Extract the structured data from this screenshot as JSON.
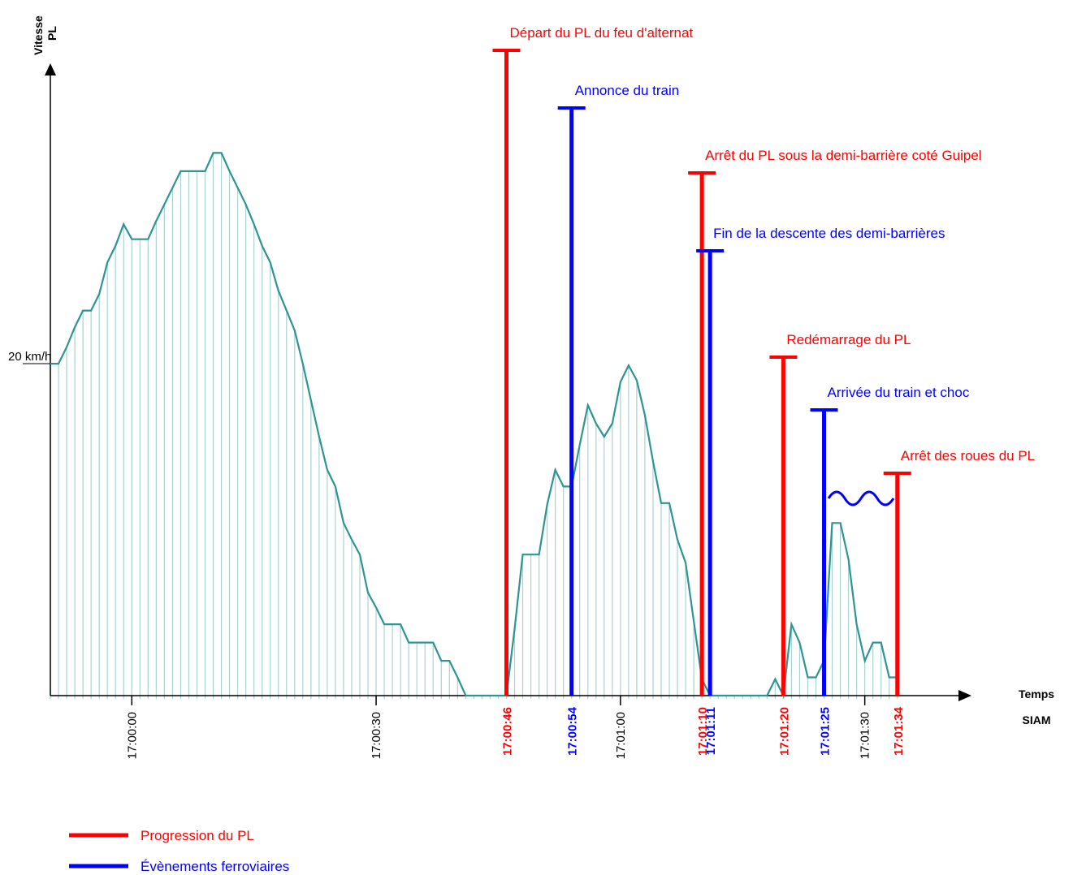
{
  "chart_data": {
    "type": "area",
    "y_label": [
      "Vitesse",
      "PL"
    ],
    "x_label": [
      "Temps",
      "SIAM"
    ],
    "color": "#2e9494",
    "hatch_color": "#a9d3d3",
    "xlim": [
      "16:59:50",
      "17:01:43"
    ],
    "ylim": [
      0,
      38
    ],
    "xticks": [
      "17:00:00",
      "17:00:30",
      "17:01:00",
      "17:01:30"
    ],
    "yticks": [
      {
        "value": 20,
        "label": "20 km/h"
      }
    ],
    "x": [
      "16:59:50",
      "16:59:51",
      "16:59:52",
      "16:59:53",
      "16:59:54",
      "16:59:55",
      "16:59:56",
      "16:59:57",
      "16:59:58",
      "16:59:59",
      "17:00:00",
      "17:00:01",
      "17:00:02",
      "17:00:03",
      "17:00:04",
      "17:00:05",
      "17:00:06",
      "17:00:07",
      "17:00:08",
      "17:00:09",
      "17:00:10",
      "17:00:11",
      "17:00:12",
      "17:00:13",
      "17:00:14",
      "17:00:15",
      "17:00:16",
      "17:00:17",
      "17:00:18",
      "17:00:19",
      "17:00:20",
      "17:00:21",
      "17:00:22",
      "17:00:23",
      "17:00:24",
      "17:00:25",
      "17:00:26",
      "17:00:27",
      "17:00:28",
      "17:00:29",
      "17:00:30",
      "17:00:31",
      "17:00:32",
      "17:00:33",
      "17:00:34",
      "17:00:35",
      "17:00:36",
      "17:00:37",
      "17:00:38",
      "17:00:39",
      "17:00:40",
      "17:00:41",
      "17:00:42",
      "17:00:43",
      "17:00:44",
      "17:00:45",
      "17:00:46",
      "17:00:47",
      "17:00:48",
      "17:00:49",
      "17:00:50",
      "17:00:51",
      "17:00:52",
      "17:00:53",
      "17:00:54",
      "17:00:55",
      "17:00:56",
      "17:00:57",
      "17:00:58",
      "17:00:59",
      "17:01:00",
      "17:01:01",
      "17:01:02",
      "17:01:03",
      "17:01:04",
      "17:01:05",
      "17:01:06",
      "17:01:07",
      "17:01:08",
      "17:01:09",
      "17:01:10",
      "17:01:11",
      "17:01:12",
      "17:01:13",
      "17:01:14",
      "17:01:15",
      "17:01:16",
      "17:01:17",
      "17:01:18",
      "17:01:19",
      "17:01:20",
      "17:01:21",
      "17:01:22",
      "17:01:23",
      "17:01:24",
      "17:01:25",
      "17:01:26",
      "17:01:27",
      "17:01:28",
      "17:01:29",
      "17:01:30",
      "17:01:31",
      "17:01:32",
      "17:01:33",
      "17:01:34"
    ],
    "values": [
      20,
      20,
      21,
      22.2,
      23.2,
      23.2,
      24.2,
      26.1,
      27.1,
      28.4,
      27.5,
      27.5,
      27.5,
      28.6,
      29.6,
      30.6,
      31.6,
      31.6,
      31.6,
      31.6,
      32.7,
      32.7,
      31.6,
      30.6,
      29.6,
      28.4,
      27.1,
      26.1,
      24.4,
      23.2,
      22,
      20,
      17.8,
      15.6,
      13.6,
      12.6,
      10.4,
      9.4,
      8.5,
      6.2,
      5.3,
      4.3,
      4.3,
      4.3,
      3.2,
      3.2,
      3.2,
      3.2,
      2.1,
      2.1,
      1.1,
      0,
      0,
      0,
      0,
      0,
      0,
      4,
      8.5,
      8.5,
      8.5,
      11.5,
      13.6,
      12.6,
      12.6,
      15.1,
      17.5,
      16.4,
      15.6,
      16.4,
      18.9,
      19.9,
      19,
      16.9,
      14.1,
      11.6,
      11.6,
      9.4,
      8,
      4.5,
      1,
      0,
      0,
      0,
      0,
      0,
      0,
      0,
      0,
      1,
      0,
      4.3,
      3.2,
      1.1,
      1.1,
      2.1,
      10.4,
      10.4,
      8.2,
      4.3,
      2.1,
      3.2,
      3.2,
      1.1,
      1.1
    ],
    "series": [
      {
        "name": "Progression du PL",
        "color": "#ff0000"
      },
      {
        "name": "Évènements ferroviaires",
        "color": "#0000ff"
      }
    ],
    "events": [
      {
        "time": "17:00:46",
        "label": "Départ du PL du feu d'alternat",
        "series": 0
      },
      {
        "time": "17:00:54",
        "label": "Annonce du train",
        "series": 1
      },
      {
        "time": "17:01:10",
        "label": "Arrêt du PL sous la demi-barrière coté Guipel",
        "series": 0
      },
      {
        "time": "17:01:11",
        "label": "Fin de la descente des demi-barrières",
        "series": 1
      },
      {
        "time": "17:01:20",
        "label": "Redémarrage du PL",
        "series": 0
      },
      {
        "time": "17:01:25",
        "label": "Arrivée du train et choc",
        "series": 1
      },
      {
        "time": "17:01:34",
        "label": "Arrêt des roues du PL",
        "series": 0
      }
    ]
  }
}
